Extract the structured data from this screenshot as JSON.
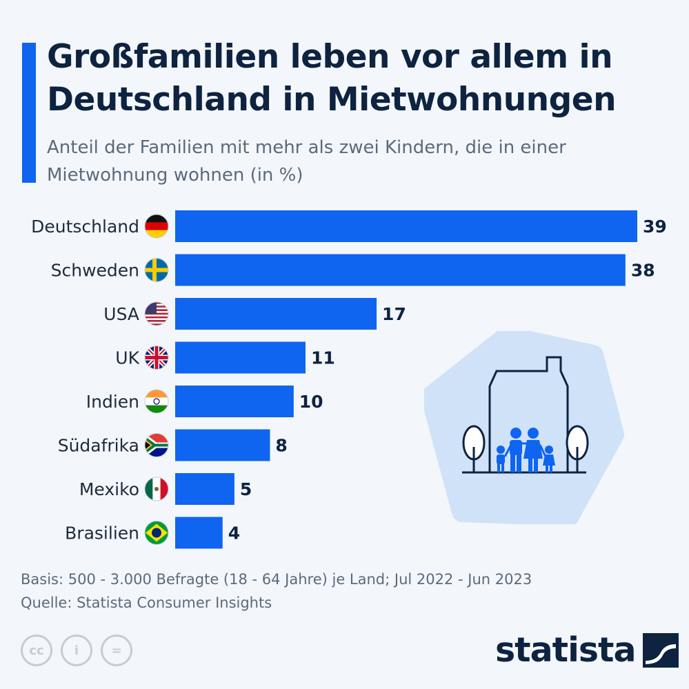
{
  "header": {
    "title": "Großfamilien leben vor allem in Deutschland in Mietwohnungen",
    "subtitle": "Anteil der Familien mit mehr als zwei Kindern, die in einer Mietwohnung wohnen (in %)"
  },
  "colors": {
    "accent": "#0f64f0",
    "bar": "#0f64f0",
    "title": "#0d2340",
    "subtitle": "#5b6a7c",
    "background": "#f3f6fa",
    "illustration_bg": "#cfe2f7"
  },
  "chart_data": {
    "type": "bar",
    "orientation": "horizontal",
    "categories": [
      "Deutschland",
      "Schweden",
      "USA",
      "UK",
      "Indien",
      "Südafrika",
      "Mexiko",
      "Brasilien"
    ],
    "values": [
      39,
      38,
      17,
      11,
      10,
      8,
      5,
      4
    ],
    "flags": [
      "germany-flag-icon",
      "sweden-flag-icon",
      "usa-flag-icon",
      "uk-flag-icon",
      "india-flag-icon",
      "south-africa-flag-icon",
      "mexico-flag-icon",
      "brazil-flag-icon"
    ],
    "xlim": [
      0,
      39
    ],
    "grid": false,
    "legend": "none"
  },
  "illustration": {
    "icon": "family-house-icon"
  },
  "footer": {
    "basis": "Basis: 500 - 3.000 Befragte (18 - 64 Jahre) je Land; Jul 2022 - Jun 2023",
    "source": "Quelle: Statista Consumer Insights"
  },
  "licenses": {
    "cc": "cc",
    "by": "i",
    "nd": "="
  },
  "brand": {
    "name": "statista",
    "icon": "statista-logo-icon"
  }
}
